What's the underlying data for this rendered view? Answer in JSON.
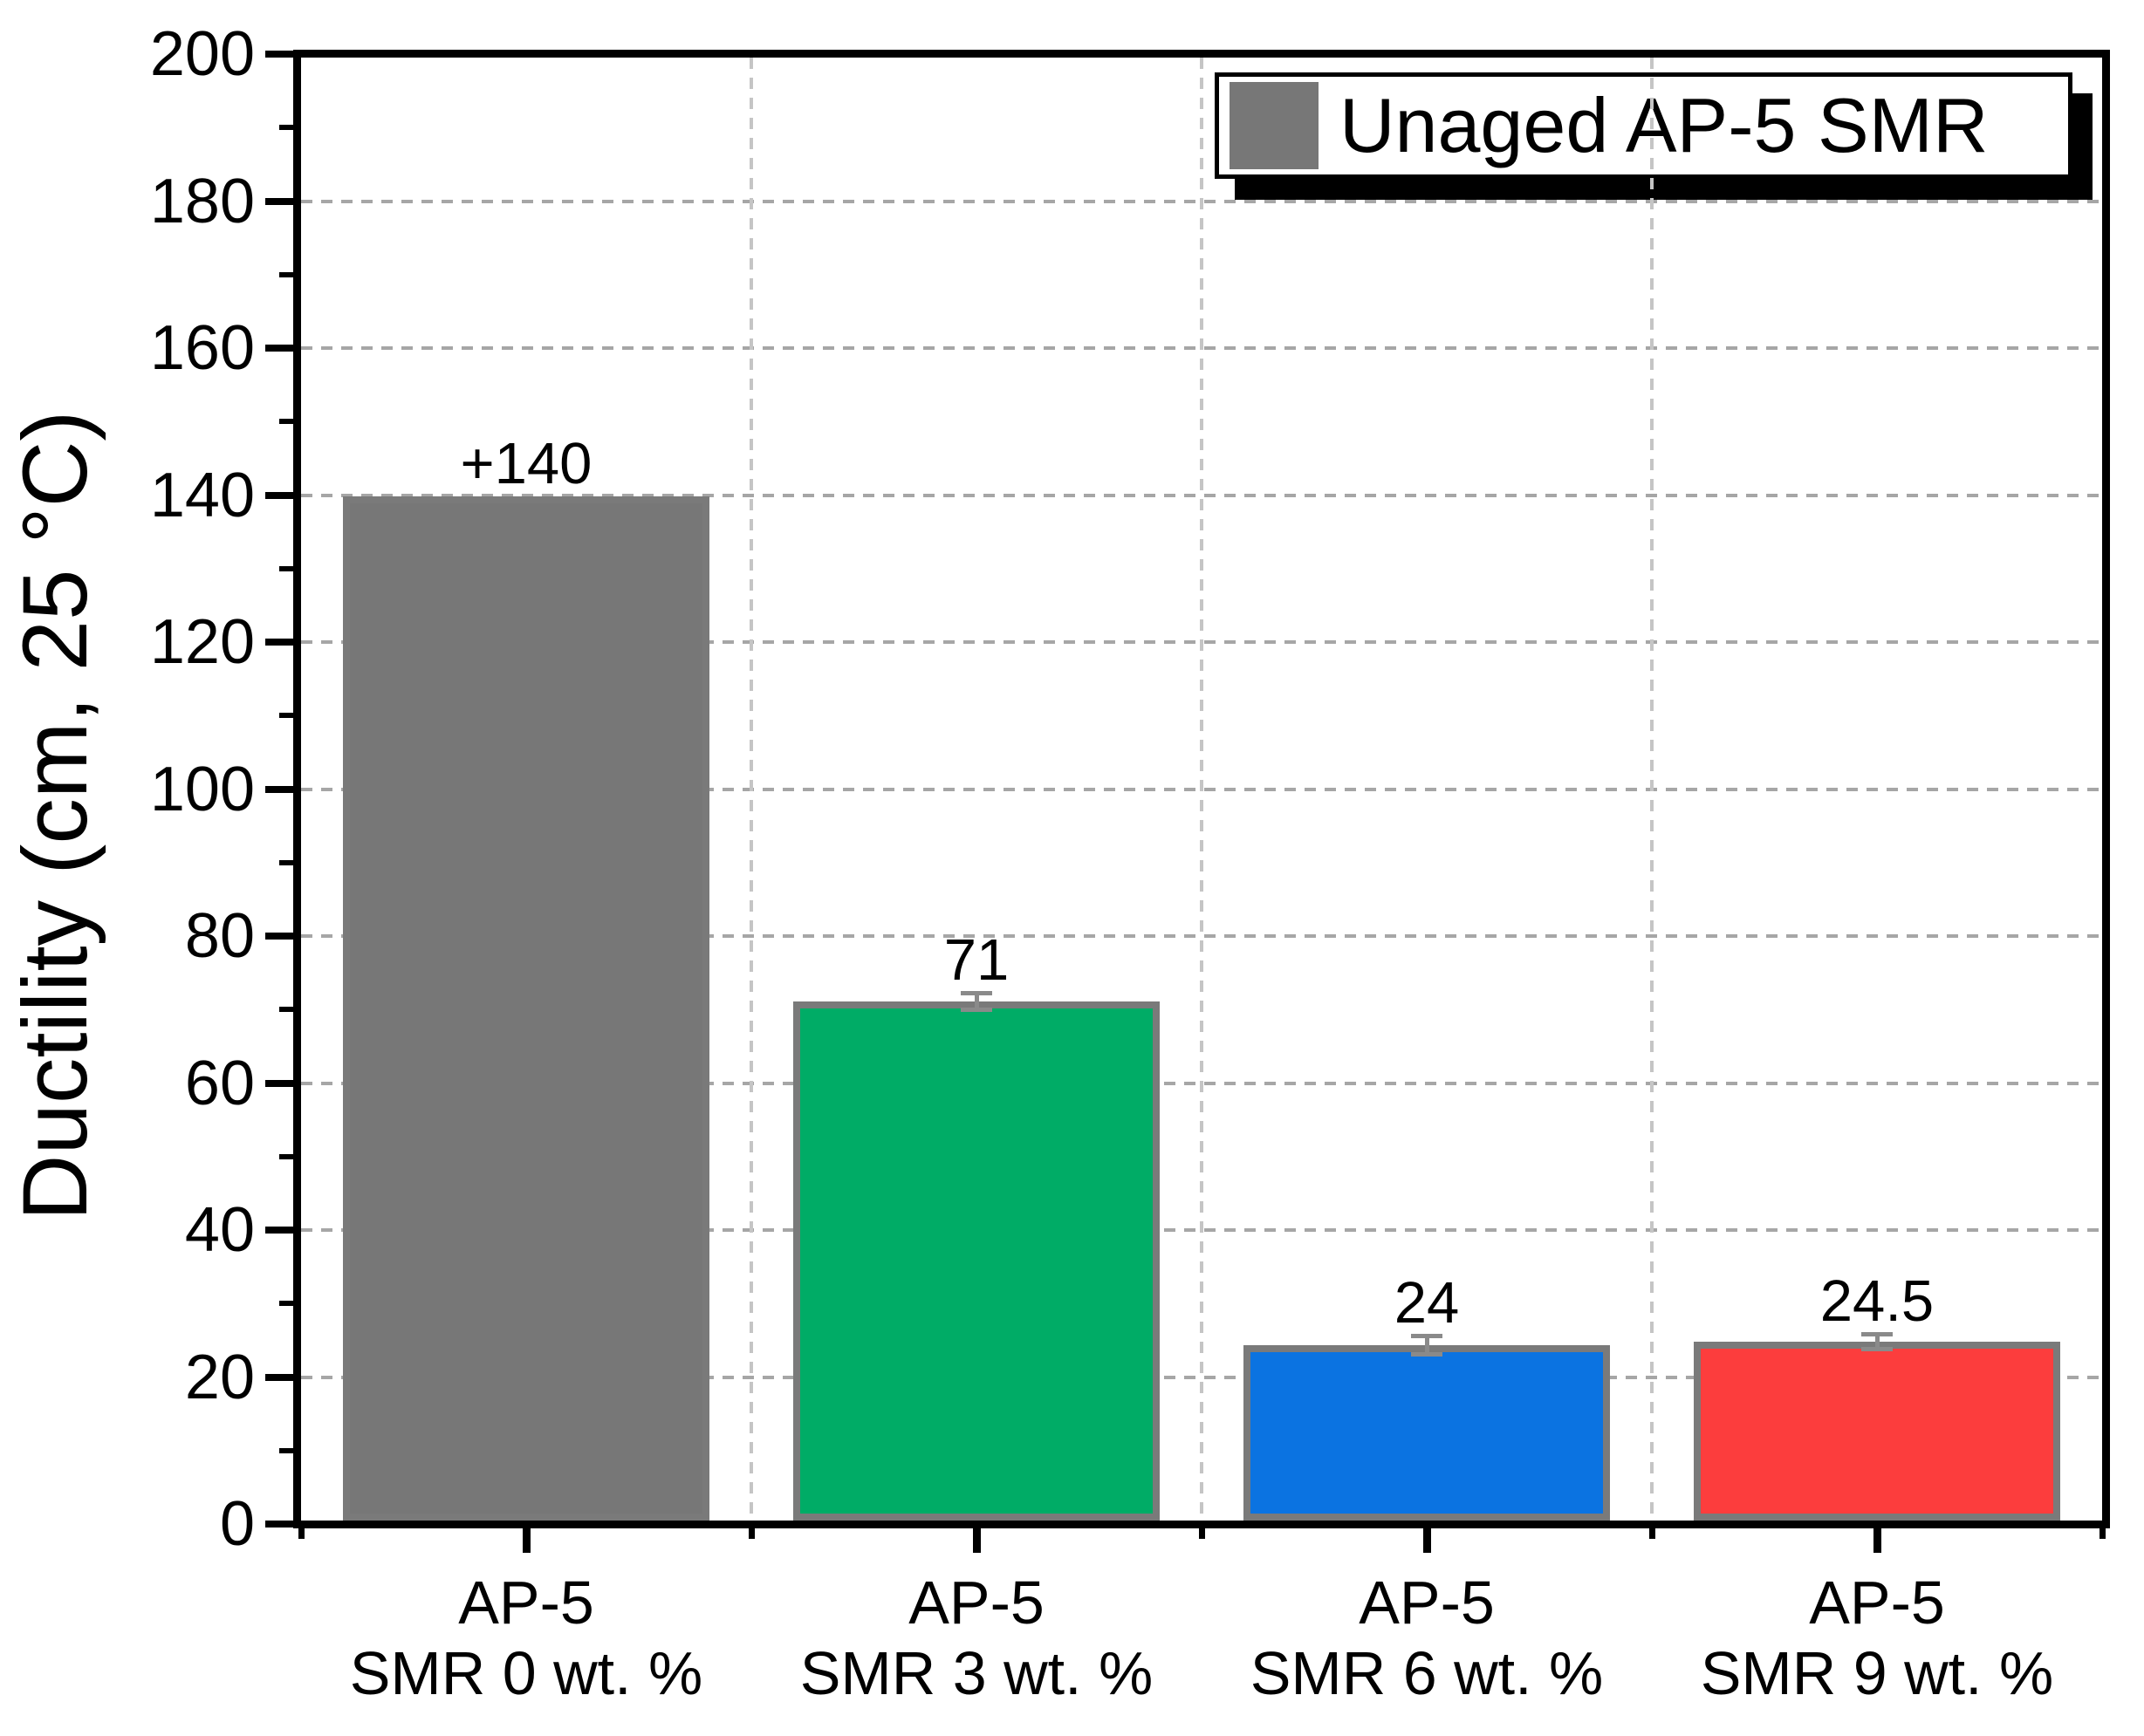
{
  "chart_data": {
    "type": "bar",
    "title": "",
    "ylabel": "Ductility (cm, 25 °C)",
    "xlabel": "",
    "ylim": [
      0,
      200
    ],
    "ytick_step": 20,
    "yminor_step": 10,
    "ytick_labels": [
      "0",
      "20",
      "40",
      "60",
      "80",
      "100",
      "120",
      "140",
      "160",
      "180",
      "200"
    ],
    "grid": {
      "horizontal": "dashed gray lines at every major y tick (20-180)",
      "vertical": "dashed gray lines at category boundaries"
    },
    "categories": [
      {
        "line1": "AP-5",
        "line2": "SMR 0 wt. %"
      },
      {
        "line1": "AP-5",
        "line2": "SMR 3 wt. %"
      },
      {
        "line1": "AP-5",
        "line2": "SMR 6 wt. %"
      },
      {
        "line1": "AP-5",
        "line2": "SMR 9 wt. %"
      }
    ],
    "series": [
      {
        "name": "Unaged AP-5 SMR",
        "values": [
          140,
          71,
          24,
          24.5
        ],
        "value_labels": [
          "+140",
          "71",
          "24",
          "24.5"
        ],
        "errors": [
          0,
          1.2,
          1.3,
          1.1
        ],
        "bar_colors": [
          "#777777",
          "#00AC66",
          "#0B73E1",
          "#FC3D3D"
        ]
      }
    ],
    "bar_outline_color": "#7A7A7A",
    "error_bar_color": "#8A8A8A",
    "legend": {
      "label": "Unaged AP-5 SMR",
      "swatch_color": "#777777",
      "position": "top-right",
      "style": "white box, thin black border, solid black drop shadow offset down-right"
    }
  }
}
